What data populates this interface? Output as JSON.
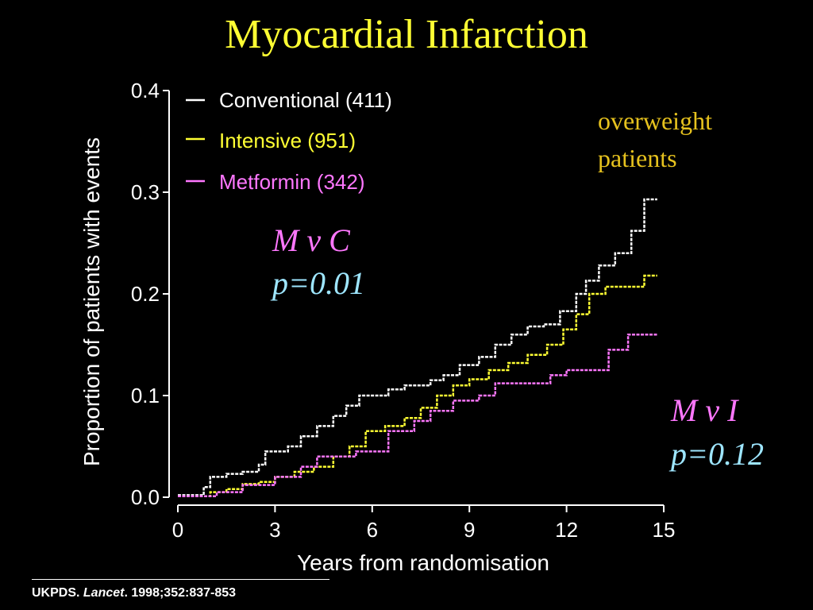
{
  "page": {
    "title": "Myocardial Infarction",
    "citation": {
      "prefix": "UKPDS.",
      "journal": "Lancet",
      "suffix": ". 1998;352:837-853"
    }
  },
  "colors": {
    "conventional": "#ffffff",
    "intensive": "#ffff33",
    "metformin": "#ff77ff",
    "note": "#e6c21e",
    "annotation_p": "#9ee6ff"
  },
  "chart_data": {
    "type": "line",
    "step": true,
    "xlabel": "Years from randomisation",
    "ylabel": "Proportion of patients with events",
    "xlim": [
      0,
      15
    ],
    "ylim": [
      0,
      0.4
    ],
    "x_ticks": [
      "0",
      "3",
      "6",
      "9",
      "12",
      "15"
    ],
    "y_ticks": [
      "0.0",
      "0.1",
      "0.2",
      "0.3",
      "0.4"
    ],
    "grid": false,
    "legend": {
      "position": "top-left"
    },
    "series": [
      {
        "name": "Conventional (411)",
        "color": "#ffffff",
        "points": [
          [
            0,
            0.002
          ],
          [
            0.8,
            0.01
          ],
          [
            1.0,
            0.02
          ],
          [
            1.5,
            0.023
          ],
          [
            2.0,
            0.025
          ],
          [
            2.5,
            0.032
          ],
          [
            2.7,
            0.045
          ],
          [
            3.4,
            0.05
          ],
          [
            3.8,
            0.06
          ],
          [
            4.3,
            0.07
          ],
          [
            4.8,
            0.08
          ],
          [
            5.2,
            0.09
          ],
          [
            5.6,
            0.1
          ],
          [
            6.5,
            0.106
          ],
          [
            7.0,
            0.11
          ],
          [
            7.8,
            0.115
          ],
          [
            8.2,
            0.12
          ],
          [
            8.7,
            0.13
          ],
          [
            9.3,
            0.138
          ],
          [
            9.8,
            0.15
          ],
          [
            10.3,
            0.16
          ],
          [
            10.8,
            0.168
          ],
          [
            11.3,
            0.17
          ],
          [
            11.8,
            0.183
          ],
          [
            12.3,
            0.2
          ],
          [
            12.6,
            0.213
          ],
          [
            13.0,
            0.228
          ],
          [
            13.5,
            0.24
          ],
          [
            14.0,
            0.262
          ],
          [
            14.4,
            0.293
          ],
          [
            14.8,
            0.293
          ]
        ]
      },
      {
        "name": "Intensive (951)",
        "color": "#ffff33",
        "points": [
          [
            0,
            0.001
          ],
          [
            1.0,
            0.005
          ],
          [
            1.5,
            0.008
          ],
          [
            2.0,
            0.013
          ],
          [
            2.5,
            0.015
          ],
          [
            3.0,
            0.02
          ],
          [
            3.6,
            0.025
          ],
          [
            4.2,
            0.03
          ],
          [
            4.8,
            0.04
          ],
          [
            5.3,
            0.05
          ],
          [
            5.8,
            0.065
          ],
          [
            6.4,
            0.07
          ],
          [
            7.0,
            0.078
          ],
          [
            7.5,
            0.088
          ],
          [
            8.0,
            0.1
          ],
          [
            8.5,
            0.11
          ],
          [
            9.0,
            0.116
          ],
          [
            9.6,
            0.125
          ],
          [
            10.2,
            0.132
          ],
          [
            10.8,
            0.14
          ],
          [
            11.4,
            0.15
          ],
          [
            11.9,
            0.165
          ],
          [
            12.3,
            0.18
          ],
          [
            12.7,
            0.2
          ],
          [
            13.2,
            0.207
          ],
          [
            14.0,
            0.207
          ],
          [
            14.4,
            0.218
          ],
          [
            14.8,
            0.218
          ]
        ]
      },
      {
        "name": "Metformin (342)",
        "color": "#ff77ff",
        "points": [
          [
            0,
            0.001
          ],
          [
            1.2,
            0.005
          ],
          [
            2.0,
            0.012
          ],
          [
            3.0,
            0.02
          ],
          [
            3.8,
            0.03
          ],
          [
            4.3,
            0.04
          ],
          [
            5.5,
            0.045
          ],
          [
            6.5,
            0.065
          ],
          [
            7.3,
            0.075
          ],
          [
            7.8,
            0.085
          ],
          [
            8.5,
            0.095
          ],
          [
            9.3,
            0.1
          ],
          [
            9.8,
            0.112
          ],
          [
            10.7,
            0.112
          ],
          [
            11.5,
            0.12
          ],
          [
            12.0,
            0.125
          ],
          [
            13.3,
            0.145
          ],
          [
            13.9,
            0.16
          ],
          [
            14.8,
            0.16
          ]
        ]
      }
    ],
    "annotations": {
      "mvc": {
        "label": "M v C",
        "p": "p=0.01"
      },
      "mvi": {
        "label": "M v I",
        "p": "p=0.12"
      },
      "note": [
        "overweight",
        "patients"
      ]
    }
  }
}
